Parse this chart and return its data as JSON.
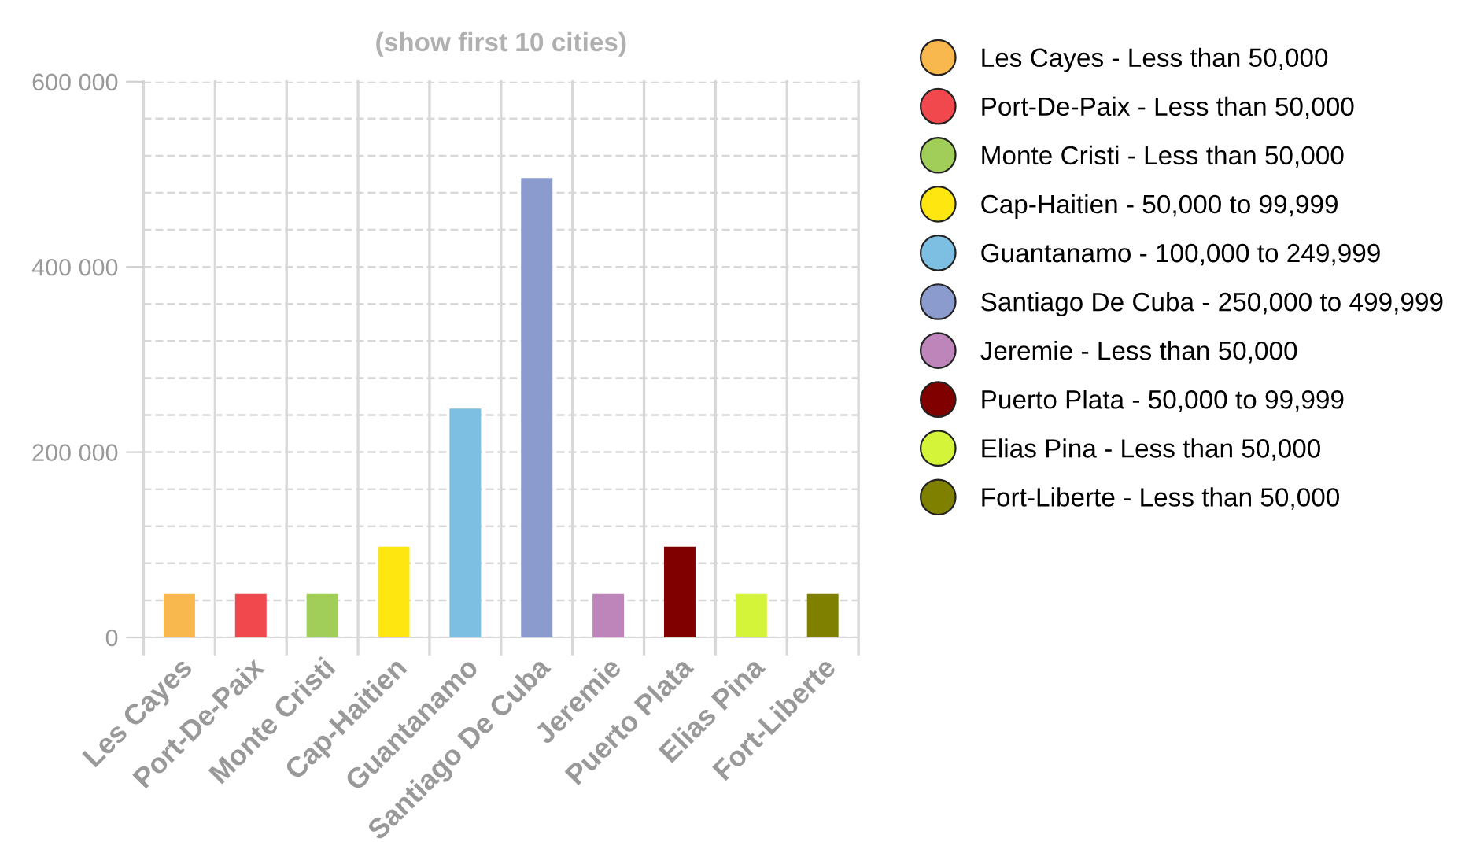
{
  "chart_data": {
    "type": "bar",
    "title": "(show first 10 cities)",
    "categories": [
      "Les Cayes",
      "Port-De-Paix",
      "Monte Cristi",
      "Cap-Haitien",
      "Guantanamo",
      "Santiago De Cuba",
      "Jeremie",
      "Puerto Plata",
      "Elias Pina",
      "Fort-Liberte"
    ],
    "series": [
      {
        "name": "Les Cayes - Less than 50,000",
        "color": "#f8b84e",
        "values": [
          47000,
          null,
          null,
          null,
          null,
          null,
          null,
          null,
          null,
          null
        ]
      },
      {
        "name": "Port-De-Paix - Less than 50,000",
        "color": "#f0484d",
        "values": [
          null,
          47000,
          null,
          null,
          null,
          null,
          null,
          null,
          null,
          null
        ]
      },
      {
        "name": "Monte Cristi - Less than 50,000",
        "color": "#a0ce58",
        "values": [
          null,
          null,
          47000,
          null,
          null,
          null,
          null,
          null,
          null,
          null
        ]
      },
      {
        "name": "Cap-Haitien - 50,000 to 99,999",
        "color": "#fee611",
        "values": [
          null,
          null,
          null,
          98000,
          null,
          null,
          null,
          null,
          null,
          null
        ]
      },
      {
        "name": "Guantanamo - 100,000 to 249,999",
        "color": "#7dbfe2",
        "values": [
          null,
          null,
          null,
          null,
          247000,
          null,
          null,
          null,
          null,
          null
        ]
      },
      {
        "name": "Santiago De Cuba - 250,000 to 499,999",
        "color": "#8b9bcd",
        "values": [
          null,
          null,
          null,
          null,
          null,
          496000,
          null,
          null,
          null,
          null
        ]
      },
      {
        "name": "Jeremie - Less than 50,000",
        "color": "#be85bb",
        "values": [
          null,
          null,
          null,
          null,
          null,
          null,
          47000,
          null,
          null,
          null
        ]
      },
      {
        "name": "Puerto Plata - 50,000 to 99,999",
        "color": "#800000",
        "values": [
          null,
          null,
          null,
          null,
          null,
          null,
          null,
          98000,
          null,
          null
        ]
      },
      {
        "name": "Elias Pina - Less than 50,000",
        "color": "#d4f43a",
        "values": [
          null,
          null,
          null,
          null,
          null,
          null,
          null,
          null,
          47000,
          null
        ]
      },
      {
        "name": "Fort-Liberte - Less than 50,000",
        "color": "#808000",
        "values": [
          null,
          null,
          null,
          null,
          null,
          null,
          null,
          null,
          null,
          47000
        ]
      }
    ],
    "ylim": [
      0,
      600000
    ],
    "yticks": [
      {
        "value": 0,
        "label": "0"
      },
      {
        "value": 40000,
        "label": null
      },
      {
        "value": 80000,
        "label": null
      },
      {
        "value": 120000,
        "label": null
      },
      {
        "value": 160000,
        "label": null
      },
      {
        "value": 200000,
        "label": "200 000"
      },
      {
        "value": 240000,
        "label": null
      },
      {
        "value": 280000,
        "label": null
      },
      {
        "value": 320000,
        "label": null
      },
      {
        "value": 360000,
        "label": null
      },
      {
        "value": 400000,
        "label": "400 000"
      },
      {
        "value": 440000,
        "label": null
      },
      {
        "value": 480000,
        "label": null
      },
      {
        "value": 520000,
        "label": null
      },
      {
        "value": 560000,
        "label": null
      },
      {
        "value": 600000,
        "label": "600 000"
      }
    ],
    "grid": true,
    "legend": "right",
    "marker": "circle"
  }
}
